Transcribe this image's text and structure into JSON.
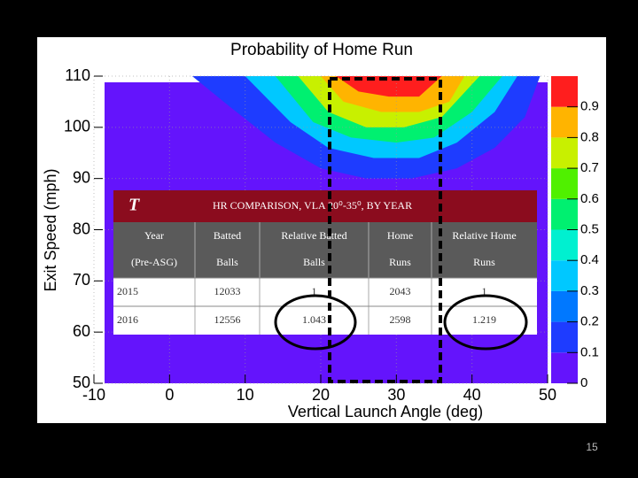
{
  "chart_data": {
    "type": "contour",
    "title": "Probability of Home Run",
    "x_label": "Vertical Launch Angle (deg)",
    "y_label": "Exit Speed (mph)",
    "xlim": [
      -10,
      50
    ],
    "xticks": [
      -10,
      0,
      10,
      20,
      30,
      40,
      50
    ],
    "ylim": [
      50,
      110
    ],
    "yticks": [
      50,
      60,
      70,
      80,
      90,
      100,
      110
    ],
    "zlim": [
      0,
      1
    ],
    "levels": [
      0,
      0.1,
      0.2,
      0.3,
      0.4,
      0.5,
      0.6,
      0.7,
      0.8,
      0.9
    ],
    "colors": [
      "#6414fc",
      "#1e3cff",
      "#0078ff",
      "#00c8ff",
      "#00f0d0",
      "#00f070",
      "#50f000",
      "#c8f000",
      "#ffb400",
      "#ff1e1e"
    ],
    "grid": true,
    "contours": [
      {
        "level": 0.1,
        "x": [
          3,
          8,
          14,
          20,
          26,
          32,
          38,
          43,
          47,
          49
        ],
        "y": [
          110,
          104,
          97,
          92,
          90,
          90,
          92,
          96,
          102,
          110
        ]
      },
      {
        "level": 0.3,
        "x": [
          10,
          16,
          21,
          27,
          33,
          38,
          43,
          46
        ],
        "y": [
          110,
          101,
          96,
          94,
          94,
          97,
          103,
          110
        ]
      },
      {
        "level": 0.5,
        "x": [
          14,
          19,
          24,
          30,
          35,
          40,
          44
        ],
        "y": [
          110,
          101,
          98,
          97,
          98,
          103,
          110
        ]
      },
      {
        "level": 0.7,
        "x": [
          17,
          21,
          26,
          31,
          36,
          41
        ],
        "y": [
          110,
          103,
          100,
          100,
          102,
          110
        ]
      },
      {
        "level": 0.8,
        "x": [
          20,
          23,
          28,
          33,
          37,
          39
        ],
        "y": [
          110,
          105,
          103,
          103,
          105,
          110
        ]
      },
      {
        "level": 0.9,
        "x": [
          22,
          25,
          29,
          33,
          36
        ],
        "y": [
          110,
          107,
          106,
          106,
          110
        ]
      }
    ]
  },
  "table": {
    "logo": "T",
    "title": "HR COMPARISON, VLA 20⁰-35⁰, BY YEAR",
    "headers": [
      [
        "Year",
        "(Pre-ASG)"
      ],
      [
        "Batted",
        "Balls"
      ],
      [
        "Relative Batted",
        "Balls"
      ],
      [
        "Home",
        "Runs"
      ],
      [
        "Relative Home",
        "Runs"
      ]
    ],
    "rows": [
      [
        2015,
        12033,
        1,
        2043,
        1
      ],
      [
        2016,
        12556,
        1.043,
        2598,
        1.219
      ]
    ]
  },
  "page_number": 15
}
